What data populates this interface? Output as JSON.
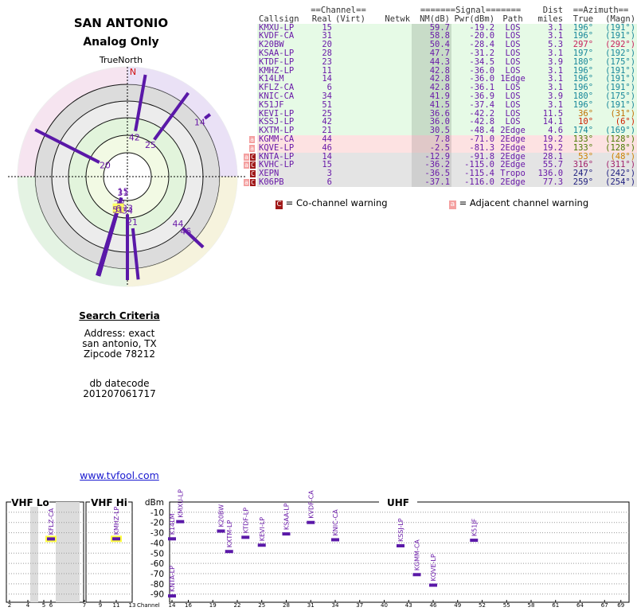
{
  "header": {
    "title": "SAN ANTONIO",
    "subtitle": "Analog Only",
    "north_label": "TrueNorth",
    "north_mark": "N"
  },
  "table": {
    "group_headers": [
      "==Channel==",
      "=======Signal=======",
      "Dist",
      "==Azimuth=="
    ],
    "headers": [
      "Callsign",
      "Real",
      "(Virt)",
      "Netwk",
      "NM(dB)",
      "Pwr(dBm)",
      "Path",
      "miles",
      "True",
      "(Magn)"
    ],
    "rows": [
      {
        "warn": [],
        "callsign": "KMXU-LP",
        "real": "15",
        "nm": "59.7",
        "pwr": "-19.2",
        "path": "LOS",
        "dist": "3.1",
        "az_true": "196°",
        "az_magn": "(191°)",
        "band": "green",
        "az_color": "#17879a"
      },
      {
        "warn": [],
        "callsign": "KVDF-CA",
        "real": "31",
        "nm": "58.8",
        "pwr": "-20.0",
        "path": "LOS",
        "dist": "3.1",
        "az_true": "196°",
        "az_magn": "(191°)",
        "band": "green",
        "az_color": "#17879a"
      },
      {
        "warn": [],
        "callsign": "K20BW",
        "real": "20",
        "nm": "50.4",
        "pwr": "-28.4",
        "path": "LOS",
        "dist": "5.3",
        "az_true": "297°",
        "az_magn": "(292°)",
        "band": "green",
        "az_color": "#c8205a"
      },
      {
        "warn": [],
        "callsign": "KSAA-LP",
        "real": "28",
        "nm": "47.7",
        "pwr": "-31.2",
        "path": "LOS",
        "dist": "3.1",
        "az_true": "197°",
        "az_magn": "(192°)",
        "band": "green",
        "az_color": "#17879a"
      },
      {
        "warn": [],
        "callsign": "KTDF-LP",
        "real": "23",
        "nm": "44.3",
        "pwr": "-34.5",
        "path": "LOS",
        "dist": "3.9",
        "az_true": "180°",
        "az_magn": "(175°)",
        "band": "green",
        "az_color": "#17879a"
      },
      {
        "warn": [],
        "callsign": "KMHZ-LP",
        "real": "11",
        "nm": "42.8",
        "pwr": "-36.0",
        "path": "LOS",
        "dist": "3.1",
        "az_true": "196°",
        "az_magn": "(191°)",
        "band": "green",
        "az_color": "#17879a"
      },
      {
        "warn": [],
        "callsign": "K14LM",
        "real": "14",
        "nm": "42.8",
        "pwr": "-36.0",
        "path": "1Edge",
        "dist": "3.1",
        "az_true": "196°",
        "az_magn": "(191°)",
        "band": "green",
        "az_color": "#17879a"
      },
      {
        "warn": [],
        "callsign": "KFLZ-CA",
        "real": "6",
        "nm": "42.8",
        "pwr": "-36.1",
        "path": "LOS",
        "dist": "3.1",
        "az_true": "196°",
        "az_magn": "(191°)",
        "band": "green",
        "az_color": "#17879a"
      },
      {
        "warn": [],
        "callsign": "KNIC-CA",
        "real": "34",
        "nm": "41.9",
        "pwr": "-36.9",
        "path": "LOS",
        "dist": "3.9",
        "az_true": "180°",
        "az_magn": "(175°)",
        "band": "green",
        "az_color": "#17879a"
      },
      {
        "warn": [],
        "callsign": "K51JF",
        "real": "51",
        "nm": "41.5",
        "pwr": "-37.4",
        "path": "LOS",
        "dist": "3.1",
        "az_true": "196°",
        "az_magn": "(191°)",
        "band": "green",
        "az_color": "#17879a"
      },
      {
        "warn": [],
        "callsign": "KEVI-LP",
        "real": "25",
        "nm": "36.6",
        "pwr": "-42.2",
        "path": "LOS",
        "dist": "11.5",
        "az_true": "36°",
        "az_magn": "(31°)",
        "band": "green",
        "az_color": "#c07000"
      },
      {
        "warn": [],
        "callsign": "KSSJ-LP",
        "real": "42",
        "nm": "36.0",
        "pwr": "-42.8",
        "path": "LOS",
        "dist": "14.1",
        "az_true": "10°",
        "az_magn": "(6°)",
        "band": "green",
        "az_color": "#d02000"
      },
      {
        "warn": [],
        "callsign": "KXTM-LP",
        "real": "21",
        "nm": "30.5",
        "pwr": "-48.4",
        "path": "2Edge",
        "dist": "4.6",
        "az_true": "174°",
        "az_magn": "(169°)",
        "band": "green",
        "az_color": "#17879a"
      },
      {
        "warn": [
          "a"
        ],
        "callsign": "KGMM-CA",
        "real": "44",
        "nm": "7.8",
        "pwr": "-71.0",
        "path": "2Edge",
        "dist": "19.2",
        "az_true": "133°",
        "az_magn": "(128°)",
        "band": "pink",
        "az_color": "#4a7a00"
      },
      {
        "warn": [
          "a"
        ],
        "callsign": "KQVE-LP",
        "real": "46",
        "nm": "-2.5",
        "pwr": "-81.3",
        "path": "2Edge",
        "dist": "19.2",
        "az_true": "133°",
        "az_magn": "(128°)",
        "band": "pink",
        "az_color": "#4a7a00"
      },
      {
        "warn": [
          "a",
          "C"
        ],
        "callsign": "KNTA-LP",
        "real": "14",
        "nm": "-12.9",
        "pwr": "-91.8",
        "path": "2Edge",
        "dist": "28.1",
        "az_true": "53°",
        "az_magn": "(48°)",
        "band": "grey",
        "az_color": "#d08000"
      },
      {
        "warn": [
          "a",
          "C"
        ],
        "callsign": "KVHC-LP",
        "real": "15",
        "nm": "-36.2",
        "pwr": "-115.0",
        "path": "2Edge",
        "dist": "55.7",
        "az_true": "316°",
        "az_magn": "(311°)",
        "band": "grey",
        "az_color": "#a0206a"
      },
      {
        "warn": [
          "C"
        ],
        "callsign": "XEPN",
        "real": "3",
        "nm": "-36.5",
        "pwr": "-115.4",
        "path": "Tropo",
        "dist": "136.0",
        "az_true": "247°",
        "az_magn": "(242°)",
        "band": "grey",
        "az_color": "#202080"
      },
      {
        "warn": [
          "a",
          "C"
        ],
        "callsign": "K06PB",
        "real": "6",
        "nm": "-37.1",
        "pwr": "-116.0",
        "path": "2Edge",
        "dist": "77.3",
        "az_true": "259°",
        "az_magn": "(254°)",
        "band": "grey",
        "az_color": "#202080"
      }
    ]
  },
  "legend": [
    {
      "key": "C",
      "text": "= Co-channel warning"
    },
    {
      "key": "a",
      "text": "= Adjacent channel warning"
    }
  ],
  "search": {
    "title": "Search Criteria",
    "lines": [
      "Address: exact",
      "san antonio, TX",
      "Zipcode 78212"
    ],
    "db_label": "db datecode",
    "db_value": "201207061717"
  },
  "link": "www.tvfool.com",
  "spectrum": {
    "sections": [
      "VHF Lo",
      "VHF Hi",
      "UHF"
    ],
    "ylabel": "dBm",
    "xlabel": "Channel",
    "ylim": [
      -98,
      0
    ],
    "yticks": [
      -10,
      -20,
      -30,
      -40,
      -50,
      -60,
      -70,
      -80,
      -90
    ],
    "xticks": [
      2,
      4,
      5,
      6,
      7,
      9,
      11,
      13,
      14,
      16,
      19,
      22,
      25,
      28,
      31,
      34,
      37,
      40,
      43,
      46,
      49,
      52,
      55,
      58,
      61,
      64,
      67,
      69
    ]
  }
}
